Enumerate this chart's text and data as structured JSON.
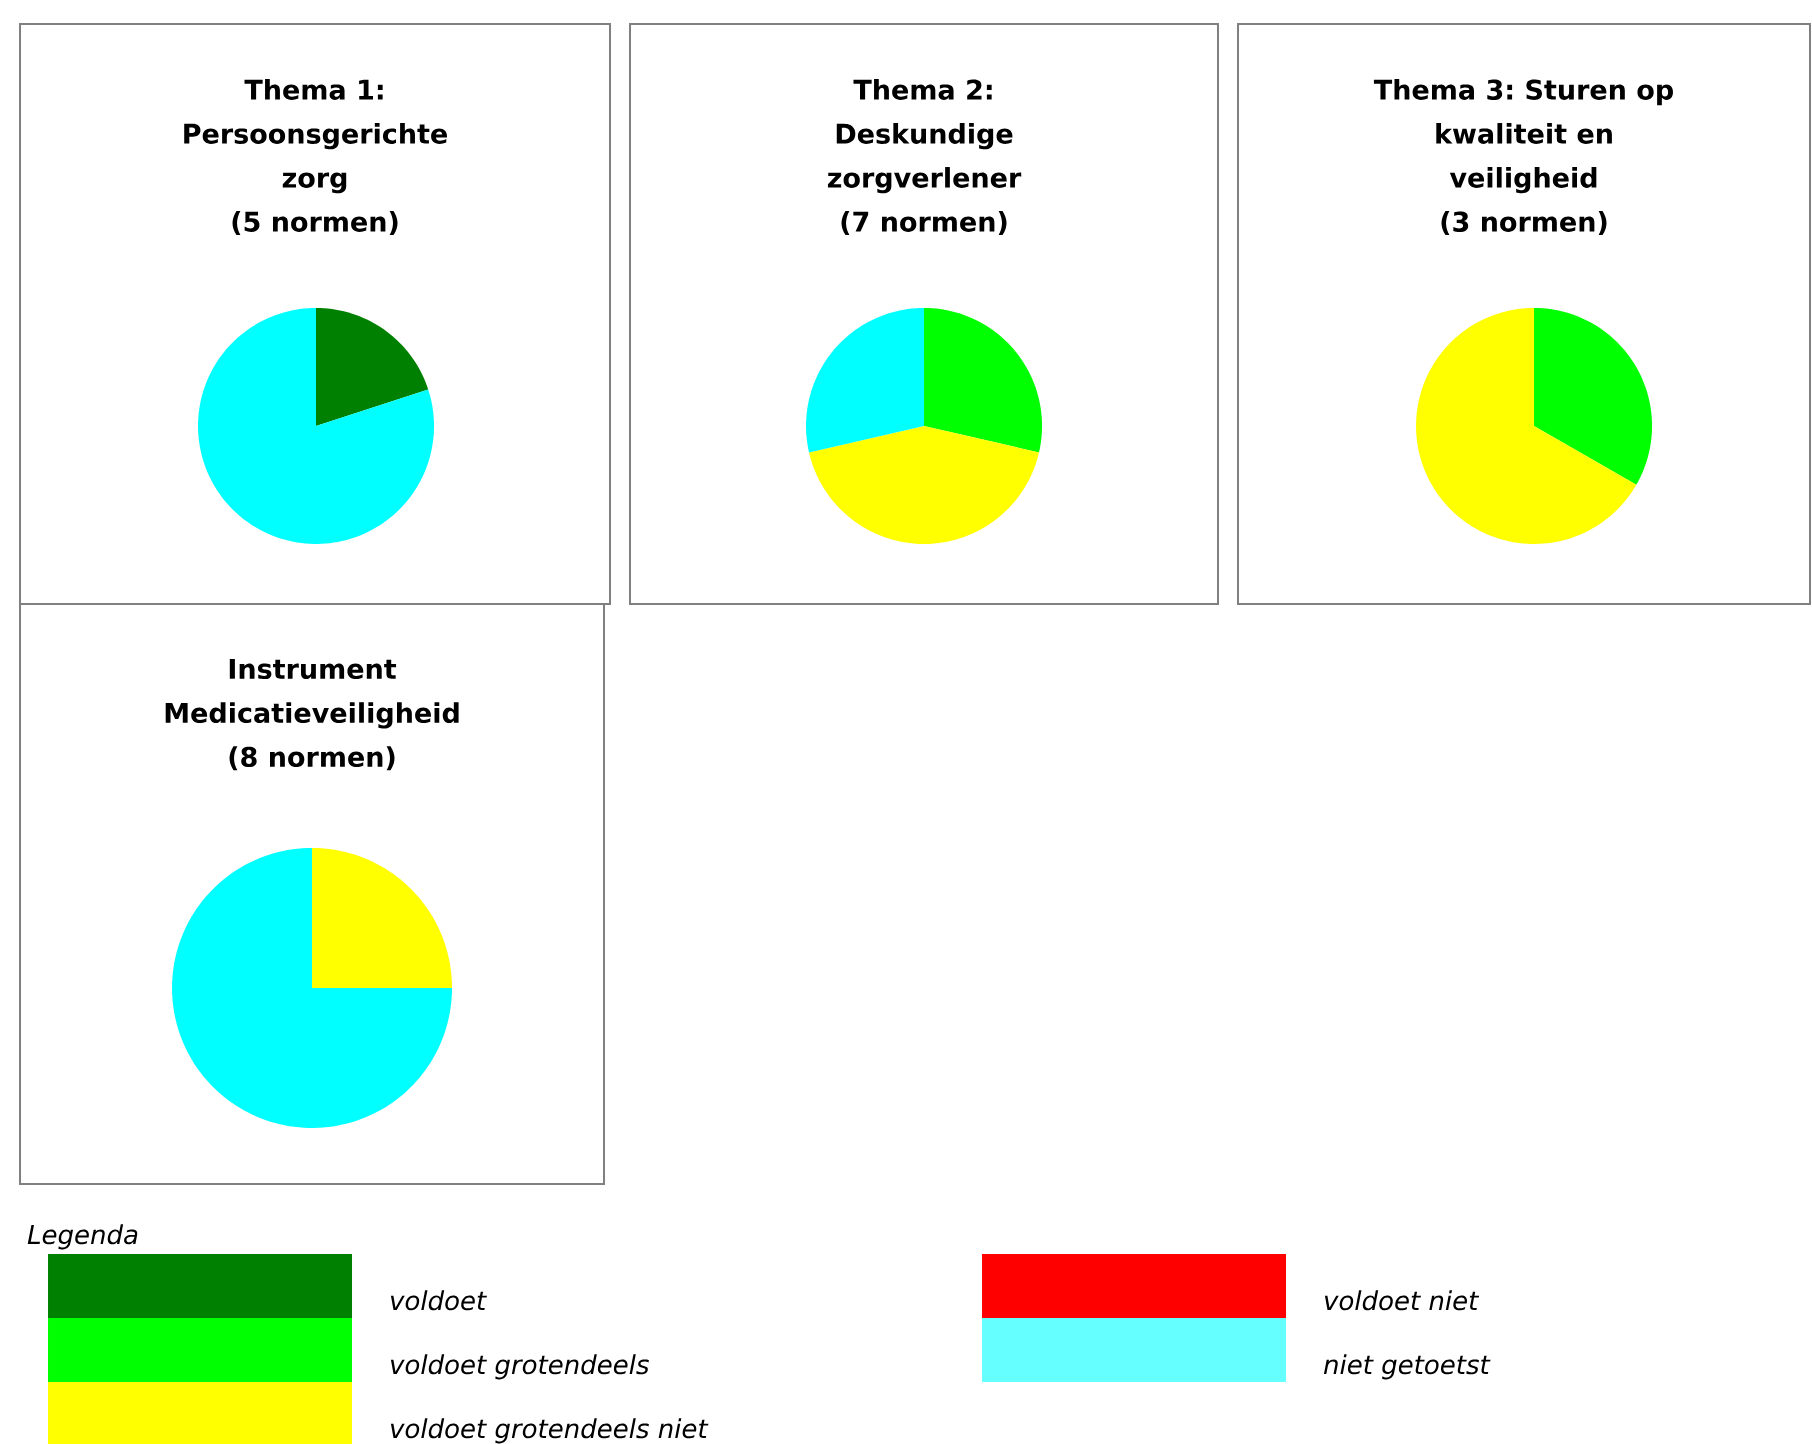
{
  "chart_data": [
    {
      "type": "pie",
      "title": "Thema 1: Persoonsgerichte zorg",
      "subtitle": "(5 normen)",
      "categories": [
        null,
        null
      ],
      "values": [
        20,
        80
      ],
      "colors": [
        "#008000",
        "#00ffff"
      ]
    },
    {
      "type": "pie",
      "title": "Thema 2: Deskundige zorgverlener",
      "subtitle": "(7 normen)",
      "categories": [
        null,
        null,
        null
      ],
      "values": [
        28.6,
        42.8,
        28.6
      ],
      "colors": [
        "#00ff00",
        "#ffff00",
        "#00ffff"
      ]
    },
    {
      "type": "pie",
      "title": "Thema 3: Sturen op kwaliteit en veiligheid",
      "subtitle": "(3 normen)",
      "categories": [
        null,
        null
      ],
      "values": [
        33.3,
        66.7
      ],
      "colors": [
        "#00ff00",
        "#ffff00"
      ]
    },
    {
      "type": "pie",
      "title": "Instrument Medicatieveiligheid",
      "subtitle": "(8 normen)",
      "categories": [
        null,
        null
      ],
      "values": [
        25,
        75
      ],
      "colors": [
        "#ffff00",
        "#00ffff"
      ]
    },
    {
      "type": "other",
      "legend_title": "Legenda",
      "categories": [
        "voldoet",
        "voldoet grotendeels",
        "voldoet grotendeels niet",
        "voldoet niet",
        "niet getoetst"
      ],
      "colors": [
        "#008000",
        "#00ff00",
        "#ffff00",
        "#ff0000",
        "#66ffff"
      ]
    }
  ]
}
